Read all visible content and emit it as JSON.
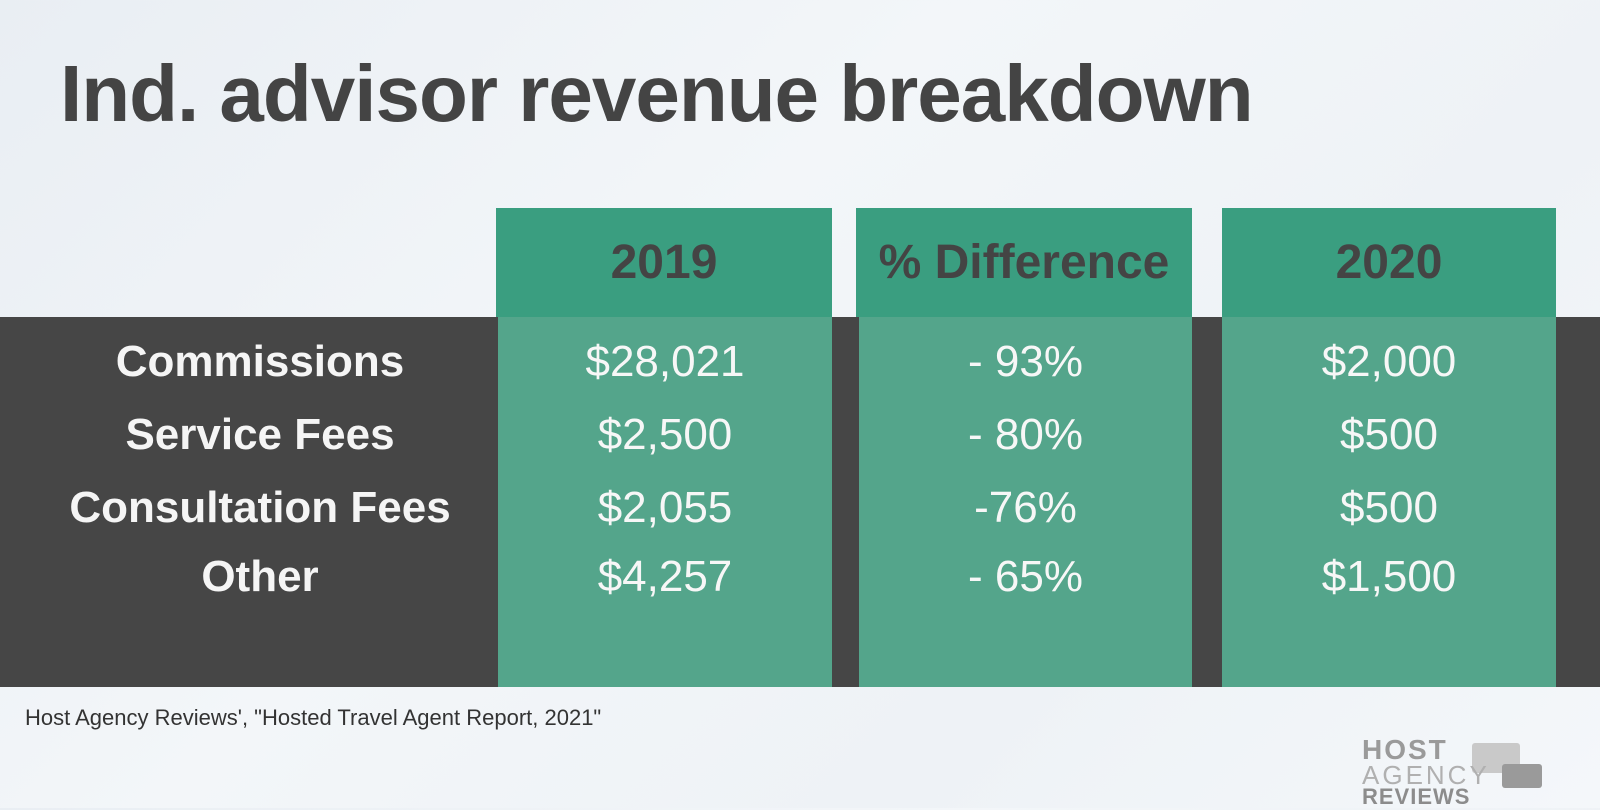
{
  "title": "Ind. advisor revenue breakdown",
  "chart_data": {
    "type": "table",
    "columns": [
      "2019",
      "% Difference",
      "2020"
    ],
    "rows": [
      {
        "label": "Commissions",
        "cells": [
          "$28,021",
          "- 93%",
          "$2,000"
        ]
      },
      {
        "label": "Service Fees",
        "cells": [
          "$2,500",
          "- 80%",
          "$500"
        ]
      },
      {
        "label": "Consultation Fees",
        "cells": [
          "$2,055",
          "-76%",
          "$500"
        ]
      },
      {
        "label": "Other",
        "cells": [
          "$4,257",
          "- 65%",
          "$1,500"
        ]
      }
    ]
  },
  "source": "Host Agency Reviews', \"Hosted Travel Agent Report, 2021\"",
  "logo": {
    "line1": "HOST",
    "line2": "AGENCY",
    "line3": "REVIEWS"
  },
  "colors": {
    "header_green": "#3a9e80",
    "body_green": "#54a58b",
    "band": "#464646",
    "title": "#444444"
  }
}
